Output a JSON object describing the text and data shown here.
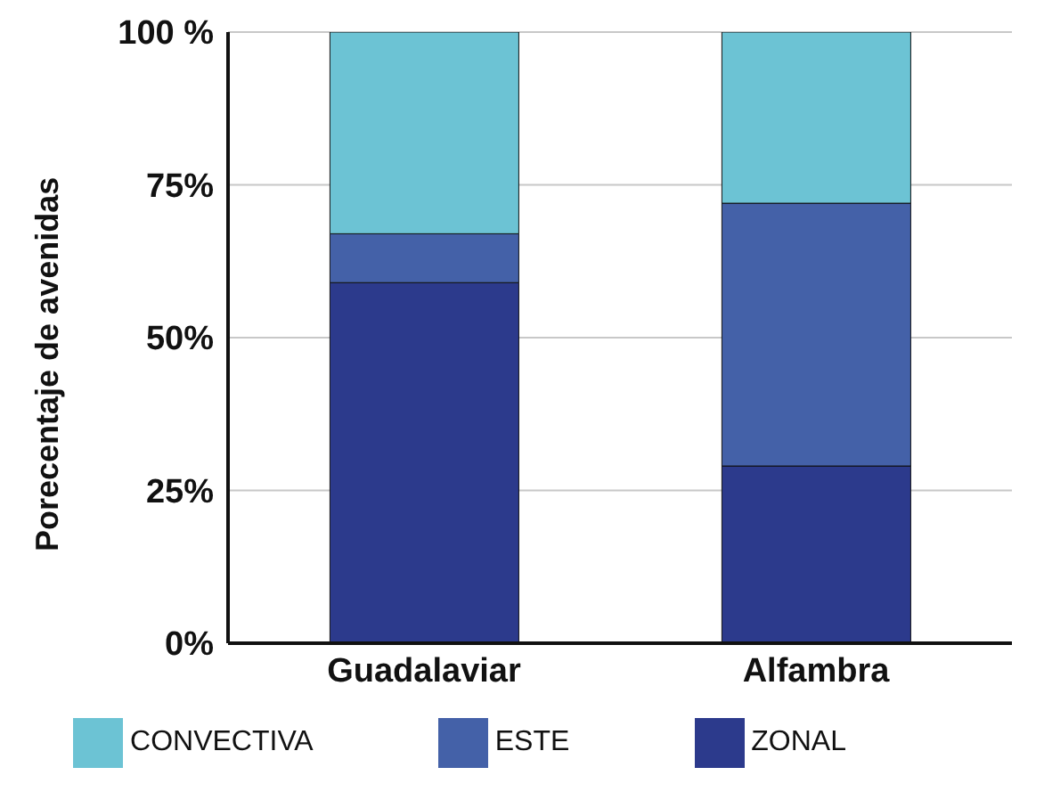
{
  "chart_data": {
    "type": "bar",
    "stacked": true,
    "ylabel": "Porecentaje de avenidas",
    "categories": [
      "Guadalaviar",
      "Alfambra"
    ],
    "series": [
      {
        "name": "ZONAL",
        "color": "#2c3a8c",
        "values": [
          59,
          29
        ]
      },
      {
        "name": "ESTE",
        "color": "#4461a8",
        "values": [
          8,
          43
        ]
      },
      {
        "name": "CONVECTIVA",
        "color": "#6cc3d4",
        "values": [
          33,
          28
        ]
      }
    ],
    "ylim": [
      0,
      100
    ],
    "yticks": [
      {
        "value": 0,
        "label": "0%"
      },
      {
        "value": 25,
        "label": "25%"
      },
      {
        "value": 50,
        "label": "50%"
      },
      {
        "value": 75,
        "label": "75%"
      },
      {
        "value": 100,
        "label": "100 %"
      }
    ],
    "grid": "y",
    "legend": "bottom"
  }
}
